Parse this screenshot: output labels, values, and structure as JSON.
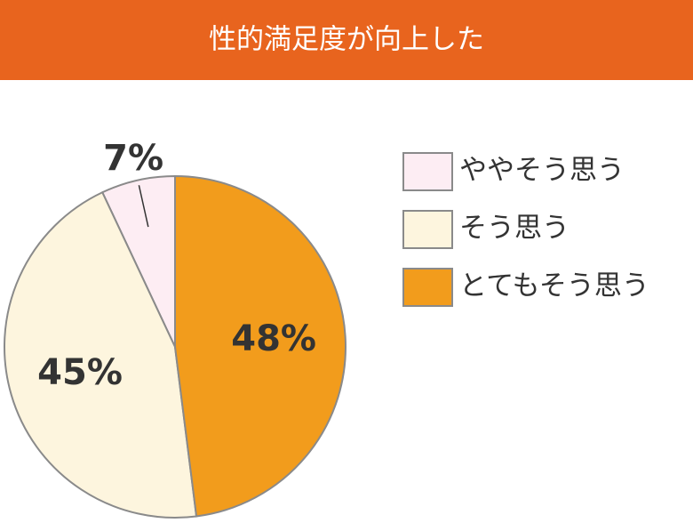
{
  "chart_data": {
    "type": "pie",
    "title": "性的満足度が向上した",
    "categories": [
      "ややそう思う",
      "そう思う",
      "とてもそう思う"
    ],
    "values": [
      7,
      45,
      48
    ],
    "value_labels": [
      "7%",
      "45%",
      "48%"
    ],
    "colors": [
      "#fdedf3",
      "#fdf5de",
      "#f29c1c"
    ]
  }
}
